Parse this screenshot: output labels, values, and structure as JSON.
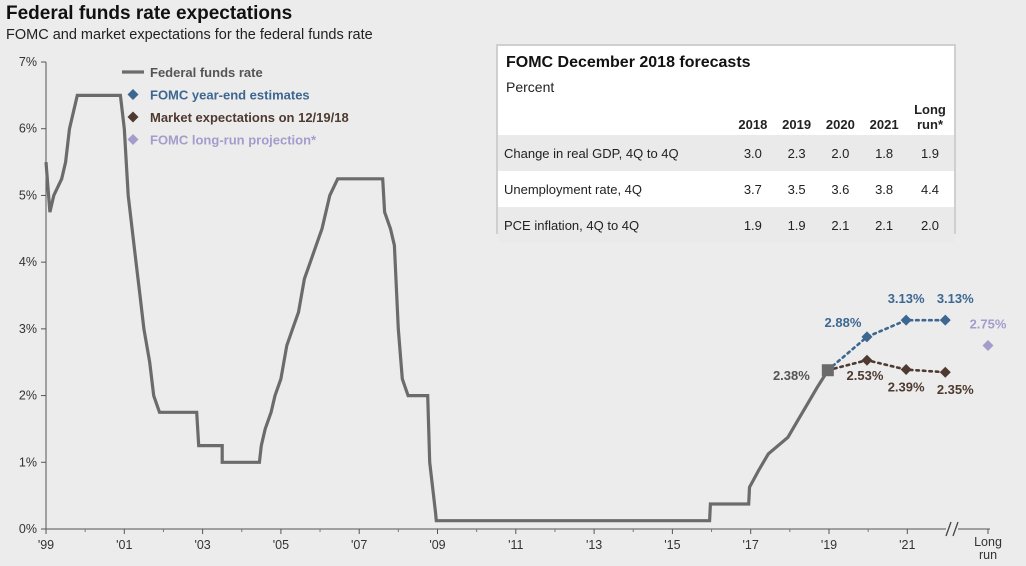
{
  "title": "Federal funds rate expectations",
  "subtitle": "FOMC and market expectations for the federal funds rate",
  "chart_data": {
    "type": "line",
    "ylim": [
      0,
      7
    ],
    "yticks": [
      "0%",
      "1%",
      "2%",
      "3%",
      "4%",
      "5%",
      "6%",
      "7%"
    ],
    "xticks": [
      "'99",
      "'01",
      "'03",
      "'05",
      "'07",
      "'09",
      "'11",
      "'13",
      "'15",
      "'17",
      "'19",
      "'21",
      "Long run"
    ],
    "legend": [
      {
        "label": "Federal funds rate",
        "color": "#6b6b6b",
        "marker": "line"
      },
      {
        "label": "FOMC year-end estimates",
        "color": "#3d6791",
        "marker": "diamond"
      },
      {
        "label": "Market expectations on 12/19/18",
        "color": "#4e3a30",
        "marker": "diamond"
      },
      {
        "label": "FOMC long-run projection*",
        "color": "#a59ccc",
        "marker": "diamond"
      }
    ],
    "series": [
      {
        "name": "Federal funds rate",
        "color": "#6b6b6b",
        "points": [
          [
            1999.0,
            5.5
          ],
          [
            1999.1,
            4.75
          ],
          [
            1999.2,
            5.0
          ],
          [
            1999.4,
            5.25
          ],
          [
            1999.5,
            5.5
          ],
          [
            1999.6,
            6.0
          ],
          [
            1999.8,
            6.5
          ],
          [
            2000.05,
            6.5
          ],
          [
            2000.4,
            6.5
          ],
          [
            2000.5,
            6.5
          ],
          [
            2000.9,
            6.5
          ],
          [
            2001.0,
            6.0
          ],
          [
            2001.1,
            5.0
          ],
          [
            2001.2,
            4.5
          ],
          [
            2001.3,
            4.0
          ],
          [
            2001.4,
            3.5
          ],
          [
            2001.5,
            3.0
          ],
          [
            2001.65,
            2.5
          ],
          [
            2001.75,
            2.0
          ],
          [
            2001.9,
            1.75
          ],
          [
            2002.85,
            1.75
          ],
          [
            2002.9,
            1.25
          ],
          [
            2003.5,
            1.25
          ],
          [
            2003.5,
            1.0
          ],
          [
            2004.45,
            1.0
          ],
          [
            2004.5,
            1.25
          ],
          [
            2004.6,
            1.5
          ],
          [
            2004.75,
            1.75
          ],
          [
            2004.85,
            2.0
          ],
          [
            2005.0,
            2.25
          ],
          [
            2005.15,
            2.75
          ],
          [
            2005.3,
            3.0
          ],
          [
            2005.45,
            3.25
          ],
          [
            2005.6,
            3.75
          ],
          [
            2005.75,
            4.0
          ],
          [
            2005.9,
            4.25
          ],
          [
            2006.05,
            4.5
          ],
          [
            2006.25,
            5.0
          ],
          [
            2006.45,
            5.25
          ],
          [
            2007.6,
            5.25
          ],
          [
            2007.65,
            4.75
          ],
          [
            2007.8,
            4.5
          ],
          [
            2007.9,
            4.25
          ],
          [
            2008.0,
            3.0
          ],
          [
            2008.1,
            2.25
          ],
          [
            2008.25,
            2.0
          ],
          [
            2008.75,
            2.0
          ],
          [
            2008.8,
            1.0
          ],
          [
            2008.95,
            0.25
          ],
          [
            2008.97,
            0.125
          ],
          [
            2015.95,
            0.125
          ],
          [
            2015.97,
            0.375
          ],
          [
            2016.95,
            0.375
          ],
          [
            2016.97,
            0.625
          ],
          [
            2017.2,
            0.875
          ],
          [
            2017.45,
            1.125
          ],
          [
            2017.95,
            1.375
          ],
          [
            2018.2,
            1.625
          ],
          [
            2018.45,
            1.875
          ],
          [
            2018.7,
            2.125
          ],
          [
            2018.97,
            2.375
          ]
        ]
      },
      {
        "name": "FOMC year-end estimates",
        "color": "#3d6791",
        "points": [
          [
            2018.97,
            2.38
          ],
          [
            2019.97,
            2.88
          ],
          [
            2020.97,
            3.13
          ],
          [
            2021.97,
            3.13
          ]
        ]
      },
      {
        "name": "Market expectations on 12/19/18",
        "color": "#4e3a30",
        "points": [
          [
            2018.97,
            2.38
          ],
          [
            2019.97,
            2.53
          ],
          [
            2020.97,
            2.39
          ],
          [
            2021.97,
            2.35
          ]
        ]
      },
      {
        "name": "FOMC long-run projection*",
        "color": "#a59ccc",
        "points": [
          [
            "Long run",
            2.75
          ]
        ]
      }
    ],
    "annotations": [
      {
        "text": "2.38%",
        "x": 2018.97,
        "y": 2.38,
        "series": "current"
      },
      {
        "text": "2.88%",
        "x": 2019.97,
        "y": 2.88,
        "series": "FOMC year-end estimates"
      },
      {
        "text": "3.13%",
        "x": 2020.97,
        "y": 3.13,
        "series": "FOMC year-end estimates"
      },
      {
        "text": "3.13%",
        "x": 2021.97,
        "y": 3.13,
        "series": "FOMC year-end estimates"
      },
      {
        "text": "2.53%",
        "x": 2019.97,
        "y": 2.53,
        "series": "Market expectations on 12/19/18"
      },
      {
        "text": "2.39%",
        "x": 2020.97,
        "y": 2.39,
        "series": "Market expectations on 12/19/18"
      },
      {
        "text": "2.35%",
        "x": 2021.97,
        "y": 2.35,
        "series": "Market expectations on 12/19/18"
      },
      {
        "text": "2.75%",
        "x": "Long run",
        "y": 2.75,
        "series": "FOMC long-run projection*"
      }
    ],
    "axis_break": "//"
  },
  "forecast_table": {
    "title": "FOMC December 2018 forecasts",
    "subtitle": "Percent",
    "columns": [
      "2018",
      "2019",
      "2020",
      "2021",
      "Long run*"
    ],
    "rows": [
      {
        "label": "Change in real GDP, 4Q to 4Q",
        "values": [
          "3.0",
          "2.3",
          "2.0",
          "1.8",
          "1.9"
        ]
      },
      {
        "label": "Unemployment rate, 4Q",
        "values": [
          "3.7",
          "3.5",
          "3.6",
          "3.8",
          "4.4"
        ]
      },
      {
        "label": "PCE inflation, 4Q to 4Q",
        "values": [
          "1.9",
          "1.9",
          "2.1",
          "2.1",
          "2.0"
        ]
      }
    ]
  }
}
